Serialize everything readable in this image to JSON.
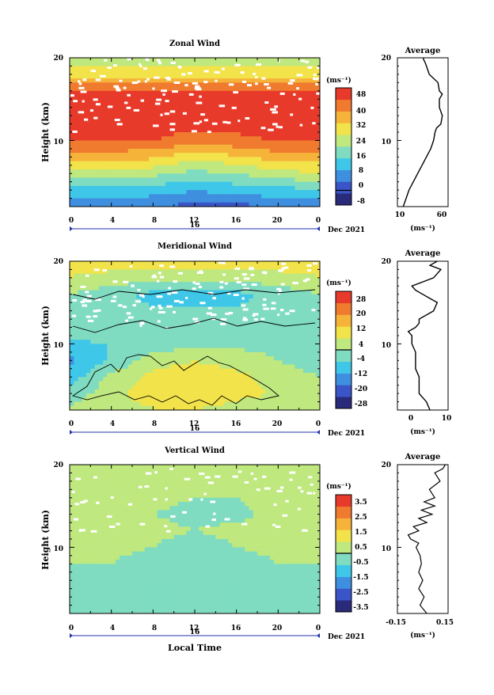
{
  "panels": [
    {
      "title": "Zonal Wind",
      "ylabel": "Height (km)",
      "yticks": [
        "20",
        "10"
      ],
      "xticks": [
        "0",
        "4",
        "8",
        "12",
        "16",
        "20",
        "0"
      ],
      "date_day": "16",
      "date_label": "Dec 2021",
      "colorbar_unit": "(ms⁻¹)",
      "colorbar_ticks": [
        "48",
        "40",
        "32",
        "24",
        "16",
        "8",
        "0",
        "-8"
      ],
      "avg_title": "Average",
      "avg_xticks": [
        "10",
        "60"
      ],
      "avg_yticks": [
        "20",
        "10"
      ],
      "avg_unit": "(ms⁻¹)"
    },
    {
      "title": "Meridional Wind",
      "ylabel": "Height (km)",
      "yticks": [
        "20",
        "10"
      ],
      "xticks": [
        "0",
        "4",
        "8",
        "12",
        "16",
        "20",
        "0"
      ],
      "date_day": "16",
      "date_label": "Dec 2021",
      "colorbar_unit": "(ms⁻¹)",
      "colorbar_ticks": [
        "28",
        "20",
        "12",
        "4",
        "-4",
        "-12",
        "-20",
        "-28"
      ],
      "avg_title": "Average",
      "avg_xticks": [
        "0",
        "10"
      ],
      "avg_yticks": [
        "20",
        "10"
      ],
      "avg_unit": "(ms⁻¹)"
    },
    {
      "title": "Vertical Wind",
      "ylabel": "Height (km)",
      "yticks": [
        "20",
        "10"
      ],
      "xticks": [
        "0",
        "4",
        "8",
        "12",
        "16",
        "20",
        "0"
      ],
      "date_day": "16",
      "date_label": "Dec 2021",
      "xlabel": "Local Time",
      "colorbar_unit": "(ms⁻¹)",
      "colorbar_ticks": [
        "3.5",
        "2.5",
        "1.5",
        "0.5",
        "-0.5",
        "-1.5",
        "-2.5",
        "-3.5"
      ],
      "avg_title": "Average",
      "avg_xticks": [
        "-0.15",
        "0.15"
      ],
      "avg_yticks": [
        "20",
        "10"
      ],
      "avg_unit": "(ms⁻¹)"
    }
  ],
  "colors": {
    "zonal_scale": [
      "#2a2a7a",
      "#3a55c8",
      "#3f8fe0",
      "#3ec7e8",
      "#7fdcc0",
      "#bfe87f",
      "#f2e34a",
      "#f6b33a",
      "#f07a2e",
      "#e83a2a"
    ],
    "merid_scale": [
      "#2a2a7a",
      "#3a55c8",
      "#3f8fe0",
      "#3ec7e8",
      "#7fdcc0",
      "#bfe87f",
      "#f2e34a",
      "#f6b33a",
      "#f07a2e",
      "#e83a2a"
    ],
    "vert_scale": [
      "#2a2a7a",
      "#3a55c8",
      "#3f8fe0",
      "#3ec7e8",
      "#7fdcc0",
      "#bfe87f",
      "#f2e34a",
      "#f6b33a",
      "#f07a2e",
      "#e83a2a"
    ]
  },
  "chart_data": [
    {
      "type": "heatmap",
      "title": "Zonal Wind",
      "x_range": [
        0,
        24
      ],
      "y_range": [
        2,
        20
      ],
      "color_range": [
        -8,
        56
      ],
      "colorbar_step": 8,
      "x": [
        0,
        4,
        8,
        12,
        16,
        20,
        24
      ],
      "y": [
        2,
        4,
        6,
        8,
        10,
        12,
        14,
        16,
        18,
        20
      ],
      "z": [
        [
          8,
          8,
          6,
          2,
          2,
          6,
          8
        ],
        [
          16,
          16,
          14,
          12,
          14,
          16,
          16
        ],
        [
          28,
          28,
          26,
          22,
          24,
          28,
          30
        ],
        [
          40,
          40,
          38,
          32,
          36,
          40,
          40
        ],
        [
          50,
          50,
          50,
          46,
          48,
          50,
          50
        ],
        [
          52,
          52,
          52,
          52,
          52,
          52,
          52
        ],
        [
          52,
          52,
          52,
          52,
          52,
          52,
          52
        ],
        [
          50,
          50,
          50,
          50,
          50,
          50,
          50
        ],
        [
          34,
          34,
          34,
          34,
          34,
          34,
          34
        ],
        [
          28,
          28,
          28,
          28,
          28,
          28,
          28
        ]
      ]
    },
    {
      "type": "heatmap",
      "title": "Meridional Wind",
      "x_range": [
        0,
        24
      ],
      "y_range": [
        2,
        20
      ],
      "color_range": [
        -32,
        32
      ],
      "colorbar_step": 8,
      "x": [
        0,
        4,
        8,
        12,
        16,
        20,
        24
      ],
      "y": [
        2,
        4,
        6,
        8,
        10,
        12,
        14,
        16,
        18,
        20
      ],
      "z": [
        [
          2,
          4,
          6,
          6,
          4,
          4,
          2
        ],
        [
          -4,
          4,
          10,
          12,
          8,
          6,
          2
        ],
        [
          -10,
          2,
          8,
          10,
          8,
          4,
          0
        ],
        [
          -14,
          -6,
          4,
          6,
          4,
          0,
          -4
        ],
        [
          -8,
          -6,
          -4,
          -2,
          -2,
          -2,
          0
        ],
        [
          -2,
          -2,
          -4,
          -4,
          -4,
          -2,
          0
        ],
        [
          -2,
          -4,
          -6,
          -6,
          -6,
          -4,
          -2
        ],
        [
          0,
          -4,
          -8,
          -8,
          -8,
          -4,
          0
        ],
        [
          6,
          4,
          2,
          2,
          2,
          4,
          6
        ],
        [
          10,
          10,
          10,
          10,
          10,
          10,
          10
        ]
      ]
    },
    {
      "type": "heatmap",
      "title": "Vertical Wind",
      "x_range": [
        0,
        24
      ],
      "y_range": [
        2,
        20
      ],
      "color_range": [
        -4,
        4
      ],
      "colorbar_step": 1,
      "x": [
        0,
        4,
        8,
        12,
        16,
        20,
        24
      ],
      "y": [
        2,
        4,
        6,
        8,
        10,
        12,
        14,
        16,
        18,
        20
      ],
      "z": [
        [
          -0.3,
          -0.3,
          -0.3,
          -0.3,
          -0.3,
          -0.3,
          -0.3
        ],
        [
          -0.2,
          -0.2,
          -0.3,
          -0.3,
          -0.2,
          -0.2,
          -0.2
        ],
        [
          -0.1,
          -0.1,
          -0.2,
          -0.3,
          -0.2,
          -0.1,
          -0.1
        ],
        [
          0.0,
          0.0,
          -0.2,
          -0.3,
          -0.2,
          0.0,
          0.0
        ],
        [
          0.1,
          0.1,
          0.0,
          -0.2,
          0.0,
          0.1,
          0.1
        ],
        [
          0.2,
          0.2,
          0.1,
          0.0,
          0.1,
          0.2,
          0.2
        ],
        [
          0.1,
          0.1,
          0.0,
          -0.1,
          -0.1,
          0.1,
          0.1
        ],
        [
          0.2,
          0.2,
          0.1,
          0.0,
          0.0,
          0.2,
          0.2
        ],
        [
          0.3,
          0.3,
          0.3,
          0.3,
          0.3,
          0.3,
          0.3
        ],
        [
          0.3,
          0.3,
          0.3,
          0.3,
          0.3,
          0.3,
          0.3
        ]
      ]
    },
    {
      "type": "line",
      "title": "Average",
      "x_range": [
        0,
        70
      ],
      "y_range": [
        2,
        20
      ],
      "x": [
        8,
        12,
        16,
        22,
        28,
        34,
        40,
        46,
        50,
        52,
        54,
        60,
        62,
        58,
        58,
        62,
        58,
        56,
        44,
        40,
        38,
        36,
        36
      ],
      "y": [
        2,
        3,
        4,
        5,
        6,
        7,
        8,
        9,
        10,
        11,
        11.5,
        12,
        13,
        14,
        15,
        15.6,
        16,
        17,
        18,
        19,
        19.5,
        19.8,
        20
      ]
    },
    {
      "type": "line",
      "title": "Average",
      "x_range": [
        -4,
        10
      ],
      "y_range": [
        2,
        20
      ],
      "x": [
        5,
        4,
        2,
        2,
        2,
        1,
        1,
        1,
        0,
        0,
        0,
        -1,
        1,
        2,
        2,
        6,
        7,
        5,
        3,
        1,
        0,
        3,
        6,
        8,
        5,
        7
      ],
      "y": [
        2,
        3,
        4,
        5,
        6,
        7,
        8,
        9,
        10,
        10.5,
        11,
        11.5,
        12,
        12.5,
        13,
        14,
        15,
        15.5,
        16,
        16.5,
        17,
        17.5,
        18,
        19,
        19.5,
        20
      ]
    },
    {
      "type": "line",
      "title": "Average",
      "x_range": [
        -0.22,
        0.16
      ],
      "y_range": [
        2,
        20
      ],
      "x": [
        0.0,
        -0.05,
        -0.02,
        -0.06,
        -0.03,
        -0.06,
        -0.04,
        -0.05,
        -0.08,
        -0.06,
        -0.12,
        -0.14,
        -0.06,
        -0.1,
        0.0,
        -0.06,
        0.04,
        -0.04,
        0.06,
        -0.02,
        0.06,
        0.02,
        0.1,
        0.06,
        0.12,
        0.14
      ],
      "y": [
        2,
        3,
        4,
        5,
        6,
        7,
        8,
        9,
        10,
        10.5,
        11,
        11.5,
        12,
        12.5,
        13,
        13.5,
        14,
        14.5,
        15,
        15.5,
        16,
        17,
        18,
        19,
        19.5,
        20
      ]
    }
  ]
}
